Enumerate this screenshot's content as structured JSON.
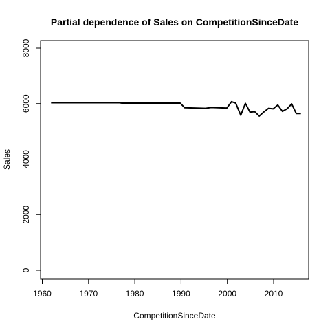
{
  "chart_data": {
    "type": "line",
    "title": "Partial dependence of Sales on CompetitionSinceDate",
    "xlabel": "CompetitionSinceDate",
    "ylabel": "Sales",
    "xlim": [
      1960,
      2016
    ],
    "ylim": [
      0,
      8000
    ],
    "x_ticks": [
      1960,
      1970,
      1980,
      1990,
      2000,
      2010
    ],
    "y_ticks": [
      0,
      2000,
      4000,
      6000,
      8000
    ],
    "grid": false,
    "legend": "none",
    "line_color": "#000000",
    "series": [
      {
        "x": [
          1961.9,
          1976.7,
          1977.1,
          1989.8,
          1990.8,
          1995.3,
          1996.5,
          1999.9,
          2000.9,
          2001.8,
          2002.9,
          2003.9,
          2004.9,
          2005.9,
          2006.9,
          2007.9,
          2008.9,
          2009.9,
          2010.9,
          2011.9,
          2012.9,
          2013.9,
          2014.9,
          2015.9
        ],
        "y": [
          6030,
          6030,
          6020,
          6020,
          5850,
          5830,
          5860,
          5840,
          6070,
          6020,
          5580,
          6010,
          5690,
          5710,
          5550,
          5700,
          5830,
          5810,
          5950,
          5720,
          5810,
          5990,
          5640,
          5640
        ]
      }
    ]
  }
}
